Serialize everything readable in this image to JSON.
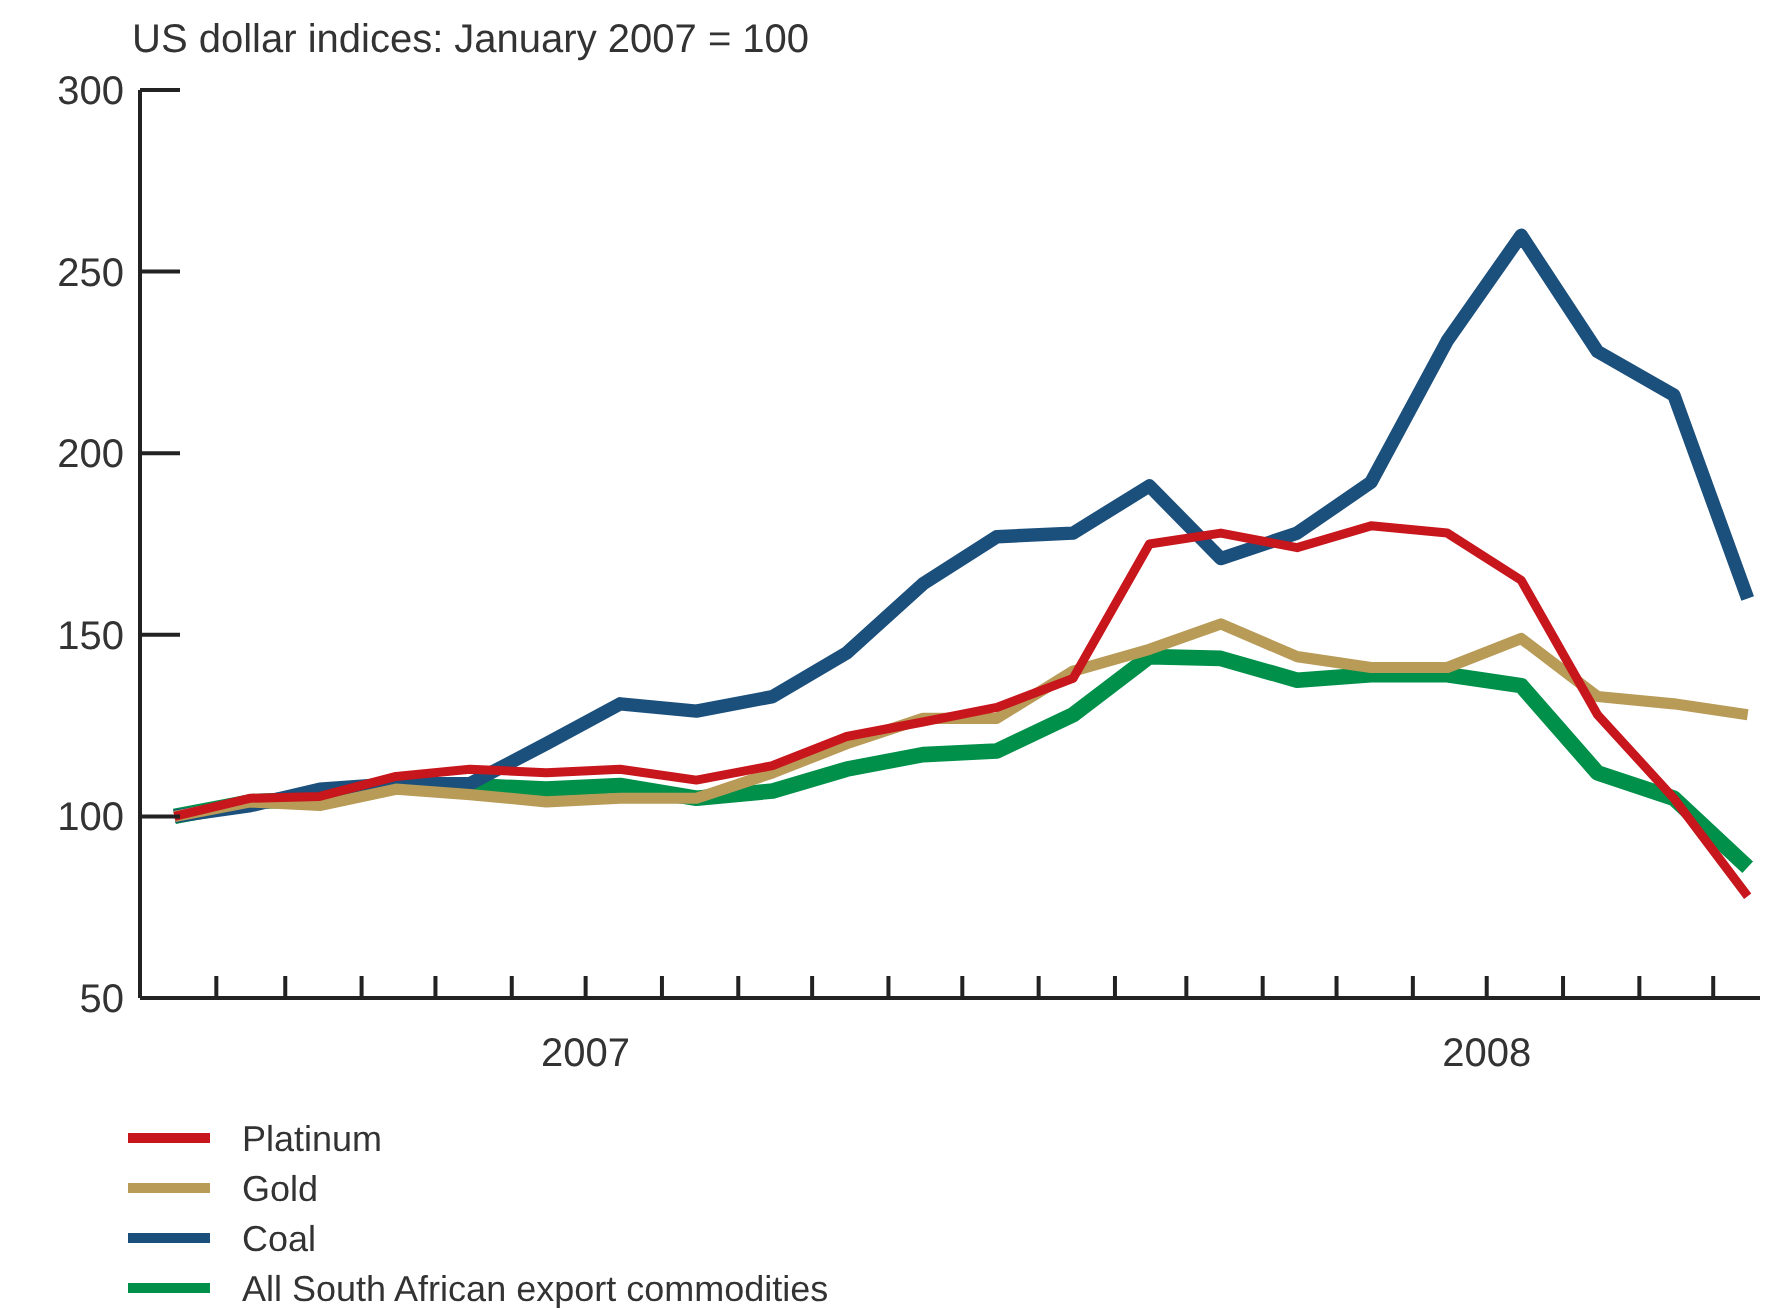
{
  "chart_data": {
    "type": "line",
    "subtitle": "US dollar indices: January 2007 = 100",
    "x": [
      "2007-01-15",
      "2007-02-15",
      "2007-03-15",
      "2007-04-15",
      "2007-05-15",
      "2007-06-15",
      "2007-07-15",
      "2007-08-15",
      "2007-09-15",
      "2007-10-15",
      "2007-11-15",
      "2007-12-15",
      "2008-01-15",
      "2008-02-15",
      "2008-03-15",
      "2008-04-15",
      "2008-05-15",
      "2008-06-15",
      "2008-07-15",
      "2008-08-15",
      "2008-09-15",
      "2008-10-15"
    ],
    "series": [
      {
        "name": "Platinum",
        "color": "#c8161d",
        "values": [
          100,
          105,
          105.5,
          111,
          113,
          112,
          113,
          110,
          114,
          122,
          126,
          130,
          138,
          175,
          178,
          174,
          180,
          178,
          165,
          128,
          105,
          78
        ]
      },
      {
        "name": "Gold",
        "color": "#b99b58",
        "values": [
          100,
          104,
          103,
          107.5,
          106,
          104,
          105,
          105,
          112,
          120,
          127,
          127,
          140,
          146,
          153,
          144,
          141,
          141,
          149,
          133,
          131,
          128
        ]
      },
      {
        "name": "Coal",
        "color": "#1b4f7c",
        "values": [
          100,
          103,
          107.5,
          109,
          109,
          120,
          131,
          129,
          133,
          145,
          164,
          177,
          178,
          191,
          171,
          178,
          192,
          231,
          260,
          228,
          216,
          160
        ]
      },
      {
        "name": "All South African export commodities",
        "color": "#00904a",
        "values": [
          100,
          104,
          105,
          108.5,
          108.5,
          107.5,
          108.5,
          105,
          107,
          113,
          117,
          118,
          128,
          144,
          143.5,
          137.5,
          139,
          139,
          136,
          112,
          105,
          86
        ]
      }
    ],
    "xlim": [
      "2007-01-01",
      "2008-10-20"
    ],
    "xticks": [
      {
        "value": "2007-02-01",
        "label": null
      },
      {
        "value": "2007-03-01",
        "label": null
      },
      {
        "value": "2007-04-01",
        "label": null
      },
      {
        "value": "2007-05-01",
        "label": null
      },
      {
        "value": "2007-06-01",
        "label": null
      },
      {
        "value": "2007-07-01",
        "label": "2007"
      },
      {
        "value": "2007-08-01",
        "label": null
      },
      {
        "value": "2007-09-01",
        "label": null
      },
      {
        "value": "2007-10-01",
        "label": null
      },
      {
        "value": "2007-11-01",
        "label": null
      },
      {
        "value": "2007-12-01",
        "label": null
      },
      {
        "value": "2008-01-01",
        "label": null
      },
      {
        "value": "2008-02-01",
        "label": null
      },
      {
        "value": "2008-03-01",
        "label": null
      },
      {
        "value": "2008-04-01",
        "label": null
      },
      {
        "value": "2008-05-01",
        "label": null
      },
      {
        "value": "2008-06-01",
        "label": null
      },
      {
        "value": "2008-07-01",
        "label": "2008"
      },
      {
        "value": "2008-08-01",
        "label": null
      },
      {
        "value": "2008-09-01",
        "label": null
      },
      {
        "value": "2008-10-01",
        "label": null
      }
    ],
    "ylim": [
      50,
      300
    ],
    "yticks": [
      50,
      100,
      150,
      200,
      250,
      300
    ],
    "grid": false,
    "legend": "bottom",
    "line_style": "solid",
    "marker": "none"
  }
}
